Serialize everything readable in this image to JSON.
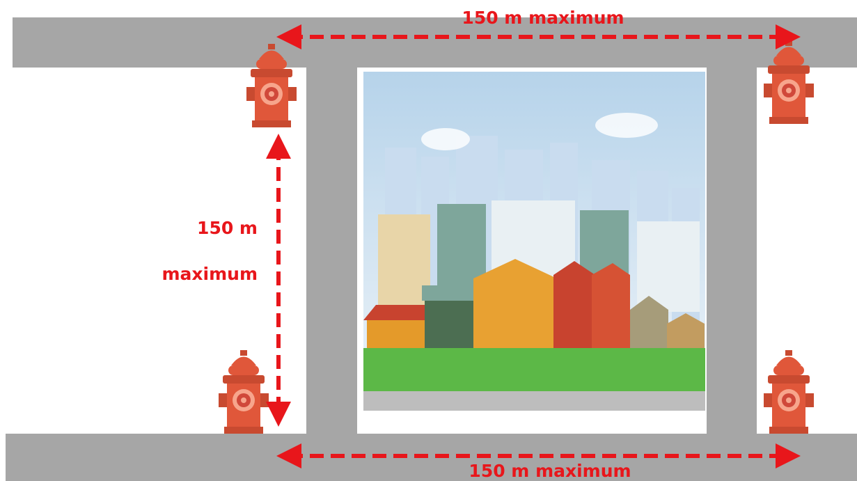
{
  "labels": {
    "top": "150 m maximum",
    "left_line1": "150 m",
    "left_line2": "maximum",
    "bottom": "150 m maximum"
  }
}
